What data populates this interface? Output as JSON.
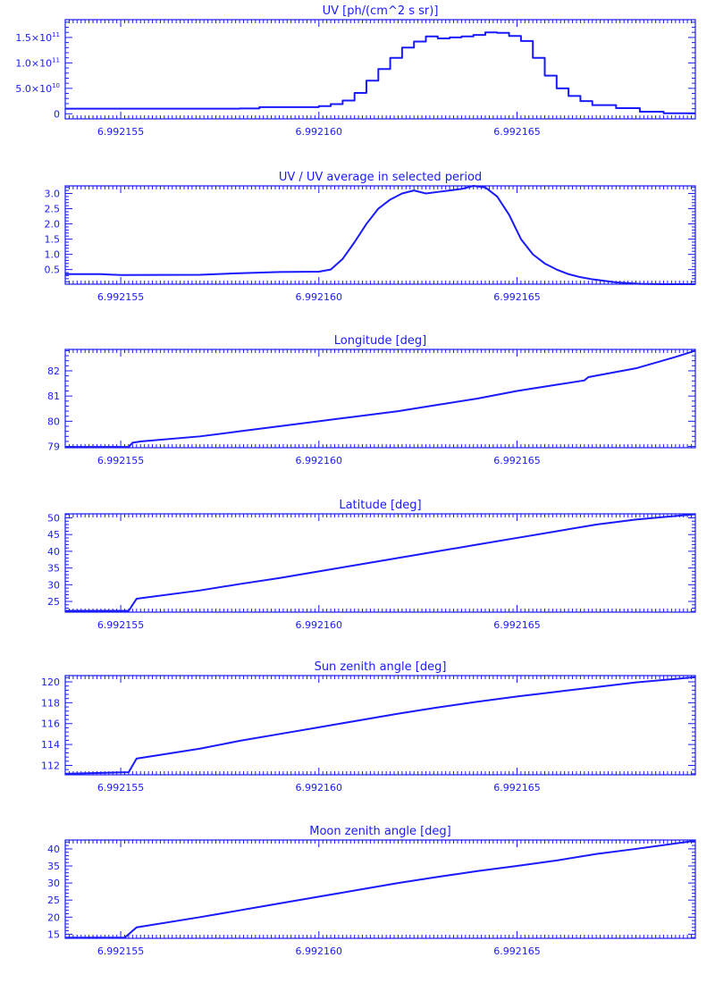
{
  "colors": {
    "ink": "#1a1aff",
    "background": "#ffffff"
  },
  "x_tick_labels": [
    "6.992155",
    "6.992160",
    "6.992165"
  ],
  "chart_data": [
    {
      "type": "line",
      "title": "UV [ph/(cm^2 s sr)]",
      "step": true,
      "xlim": [
        6.9921536,
        6.9921695
      ],
      "ylim": [
        -10000000000.0,
        185000000000.0
      ],
      "y_ticks": [
        {
          "value": 0,
          "mantissa": "0",
          "exp": ""
        },
        {
          "value": 50000000000.0,
          "mantissa": "5.0×10",
          "exp": "10"
        },
        {
          "value": 100000000000.0,
          "mantissa": "1.0×10",
          "exp": "11"
        },
        {
          "value": 150000000000.0,
          "mantissa": "1.5×10",
          "exp": "11"
        }
      ],
      "series": [
        {
          "x": [
            6.9921536,
            6.992158,
            6.9921585,
            6.99216,
            6.9921603,
            6.9921606,
            6.9921609,
            6.9921612,
            6.9921615,
            6.9921618,
            6.9921621,
            6.9921624,
            6.9921627,
            6.992163,
            6.9921633,
            6.9921636,
            6.9921639,
            6.9921642,
            6.9921645,
            6.9921648,
            6.9921651,
            6.9921654,
            6.9921657,
            6.992166,
            6.9921663,
            6.9921666,
            6.9921669,
            6.9921675,
            6.9921681,
            6.9921687,
            6.9921695
          ],
          "y": [
            10000000000.0,
            10500000000.0,
            13000000000.0,
            15000000000.0,
            19000000000.0,
            26000000000.0,
            41000000000.0,
            65000000000.0,
            88000000000.0,
            110000000000.0,
            130000000000.0,
            142000000000.0,
            152000000000.0,
            148000000000.0,
            150000000000.0,
            152000000000.0,
            155000000000.0,
            160000000000.0,
            159000000000.0,
            153000000000.0,
            143000000000.0,
            110000000000.0,
            75000000000.0,
            50000000000.0,
            35000000000.0,
            25000000000.0,
            17000000000.0,
            11000000000.0,
            4000000000.0,
            1000000000.0,
            1000000000.0
          ]
        }
      ]
    },
    {
      "type": "line",
      "title": "UV / UV average in selected period",
      "xlim": [
        6.9921536,
        6.9921695
      ],
      "ylim": [
        0.02,
        3.25
      ],
      "y_ticks": [
        {
          "value": 0.5,
          "mantissa": "0.5"
        },
        {
          "value": 1.0,
          "mantissa": "1.0"
        },
        {
          "value": 1.5,
          "mantissa": "1.5"
        },
        {
          "value": 2.0,
          "mantissa": "2.0"
        },
        {
          "value": 2.5,
          "mantissa": "2.5"
        },
        {
          "value": 3.0,
          "mantissa": "3.0"
        }
      ],
      "series": [
        {
          "x": [
            6.9921536,
            6.9921545,
            6.992155,
            6.992157,
            6.992158,
            6.992159,
            6.99216,
            6.9921603,
            6.9921606,
            6.9921609,
            6.9921612,
            6.9921615,
            6.9921618,
            6.9921621,
            6.9921624,
            6.9921627,
            6.992163,
            6.9921633,
            6.9921636,
            6.9921639,
            6.9921642,
            6.9921645,
            6.9921648,
            6.9921651,
            6.9921654,
            6.9921657,
            6.992166,
            6.9921663,
            6.9921666,
            6.9921669,
            6.9921675,
            6.9921681,
            6.9921687,
            6.9921695
          ],
          "y": [
            0.35,
            0.35,
            0.32,
            0.33,
            0.38,
            0.42,
            0.43,
            0.5,
            0.85,
            1.4,
            2.0,
            2.5,
            2.8,
            3.0,
            3.1,
            3.0,
            3.05,
            3.1,
            3.15,
            3.25,
            3.2,
            2.9,
            2.3,
            1.5,
            1.0,
            0.7,
            0.5,
            0.35,
            0.25,
            0.18,
            0.08,
            0.03,
            0.02,
            0.02
          ]
        }
      ]
    },
    {
      "type": "line",
      "title": "Longitude [deg]",
      "xlim": [
        6.9921536,
        6.9921695
      ],
      "ylim": [
        78.95,
        82.85
      ],
      "y_ticks": [
        {
          "value": 79,
          "mantissa": "79"
        },
        {
          "value": 80,
          "mantissa": "80"
        },
        {
          "value": 81,
          "mantissa": "81"
        },
        {
          "value": 82,
          "mantissa": "82"
        }
      ],
      "series": [
        {
          "x": [
            6.9921536,
            6.9921552,
            6.9921553,
            6.9921555,
            6.992157,
            6.992158,
            6.992159,
            6.99216,
            6.992161,
            6.992162,
            6.992163,
            6.992164,
            6.992165,
            6.992166,
            6.9921667,
            6.9921668,
            6.992168,
            6.992169,
            6.9921695
          ],
          "y": [
            78.98,
            78.98,
            79.15,
            79.2,
            79.4,
            79.6,
            79.8,
            80.0,
            80.2,
            80.4,
            80.65,
            80.9,
            81.2,
            81.45,
            81.62,
            81.75,
            82.1,
            82.55,
            82.8
          ]
        }
      ]
    },
    {
      "type": "line",
      "title": "Latitude [deg]",
      "xlim": [
        6.9921536,
        6.9921695
      ],
      "ylim": [
        21.8,
        51.2
      ],
      "y_ticks": [
        {
          "value": 25,
          "mantissa": "25"
        },
        {
          "value": 30,
          "mantissa": "30"
        },
        {
          "value": 35,
          "mantissa": "35"
        },
        {
          "value": 40,
          "mantissa": "40"
        },
        {
          "value": 45,
          "mantissa": "45"
        },
        {
          "value": 50,
          "mantissa": "50"
        }
      ],
      "series": [
        {
          "x": [
            6.9921536,
            6.9921552,
            6.9921554,
            6.992157,
            6.992158,
            6.992159,
            6.99216,
            6.992161,
            6.992162,
            6.992163,
            6.992164,
            6.992165,
            6.992166,
            6.992167,
            6.992168,
            6.9921695
          ],
          "y": [
            22.2,
            22.2,
            25.8,
            28.3,
            30.2,
            32.0,
            34.0,
            36.0,
            38.0,
            40.0,
            42.0,
            44.0,
            46.0,
            48.0,
            49.5,
            51.1
          ]
        }
      ]
    },
    {
      "type": "line",
      "title": "Sun zenith angle [deg]",
      "xlim": [
        6.9921536,
        6.9921695
      ],
      "ylim": [
        111.1,
        120.6
      ],
      "y_ticks": [
        {
          "value": 112,
          "mantissa": "112"
        },
        {
          "value": 114,
          "mantissa": "114"
        },
        {
          "value": 116,
          "mantissa": "116"
        },
        {
          "value": 118,
          "mantissa": "118"
        },
        {
          "value": 120,
          "mantissa": "120"
        }
      ],
      "series": [
        {
          "x": [
            6.9921536,
            6.9921552,
            6.9921554,
            6.992157,
            6.992158,
            6.992159,
            6.99216,
            6.992161,
            6.992162,
            6.992163,
            6.992164,
            6.992165,
            6.992166,
            6.992167,
            6.992168,
            6.9921695
          ],
          "y": [
            111.2,
            111.35,
            112.65,
            113.6,
            114.35,
            115.0,
            115.65,
            116.3,
            116.95,
            117.55,
            118.1,
            118.6,
            119.05,
            119.5,
            119.95,
            120.45
          ]
        }
      ]
    },
    {
      "type": "line",
      "title": "Moon zenith angle [deg]",
      "xlim": [
        6.9921536,
        6.9921695
      ],
      "ylim": [
        13.8,
        42.6
      ],
      "y_ticks": [
        {
          "value": 15,
          "mantissa": "15"
        },
        {
          "value": 20,
          "mantissa": "20"
        },
        {
          "value": 25,
          "mantissa": "25"
        },
        {
          "value": 30,
          "mantissa": "30"
        },
        {
          "value": 35,
          "mantissa": "35"
        },
        {
          "value": 40,
          "mantissa": "40"
        }
      ],
      "series": [
        {
          "x": [
            6.9921536,
            6.9921551,
            6.9921554,
            6.992157,
            6.992158,
            6.992159,
            6.99216,
            6.992161,
            6.992162,
            6.992163,
            6.992164,
            6.992165,
            6.992166,
            6.992167,
            6.992168,
            6.9921695
          ],
          "y": [
            14.0,
            14.0,
            17.0,
            20.0,
            22.0,
            24.0,
            26.0,
            28.0,
            30.0,
            31.8,
            33.5,
            35.0,
            36.6,
            38.5,
            40.0,
            42.4
          ]
        }
      ]
    }
  ]
}
